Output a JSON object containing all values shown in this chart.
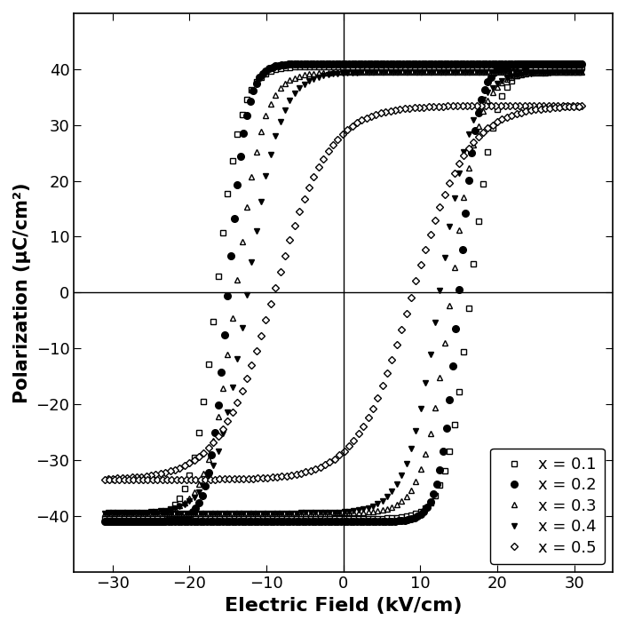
{
  "xlabel": "Electric Field (kV/cm)",
  "ylabel": "Polarization (μC/cm²)",
  "xlim": [
    -35,
    35
  ],
  "ylim": [
    -50,
    50
  ],
  "xticks": [
    -30,
    -20,
    -10,
    0,
    10,
    20,
    30
  ],
  "yticks": [
    -40,
    -30,
    -20,
    -10,
    0,
    10,
    20,
    30,
    40
  ],
  "series": [
    {
      "label": "x = 0.1",
      "marker": "s",
      "fillstyle": "none",
      "ms": 4.5,
      "Ec": 16.5,
      "Pr": 37.5,
      "Emax": 31.0,
      "Pmax": 40.5,
      "k": 0.32,
      "markevery": 3
    },
    {
      "label": "x = 0.2",
      "marker": "o",
      "fillstyle": "full",
      "ms": 5.5,
      "Ec": 15.0,
      "Pr": 39.0,
      "Emax": 31.0,
      "Pmax": 41.0,
      "k": 0.42,
      "markevery": 2
    },
    {
      "label": "x = 0.3",
      "marker": "^",
      "fillstyle": "none",
      "ms": 5.0,
      "Ec": 14.0,
      "Pr": 36.0,
      "Emax": 31.0,
      "Pmax": 39.5,
      "k": 0.28,
      "markevery": 3
    },
    {
      "label": "x = 0.4",
      "marker": "v",
      "fillstyle": "full",
      "ms": 5.0,
      "Ec": 12.5,
      "Pr": 34.0,
      "Emax": 31.0,
      "Pmax": 39.5,
      "k": 0.24,
      "markevery": 3
    },
    {
      "label": "x = 0.5",
      "marker": "D",
      "fillstyle": "none",
      "ms": 4.5,
      "Ec": 9.0,
      "Pr": 22.0,
      "Emax": 31.0,
      "Pmax": 33.5,
      "k": 0.14,
      "markevery": 3
    }
  ],
  "figsize": [
    7.05,
    7.07
  ],
  "dpi": 100,
  "n_points": 300
}
